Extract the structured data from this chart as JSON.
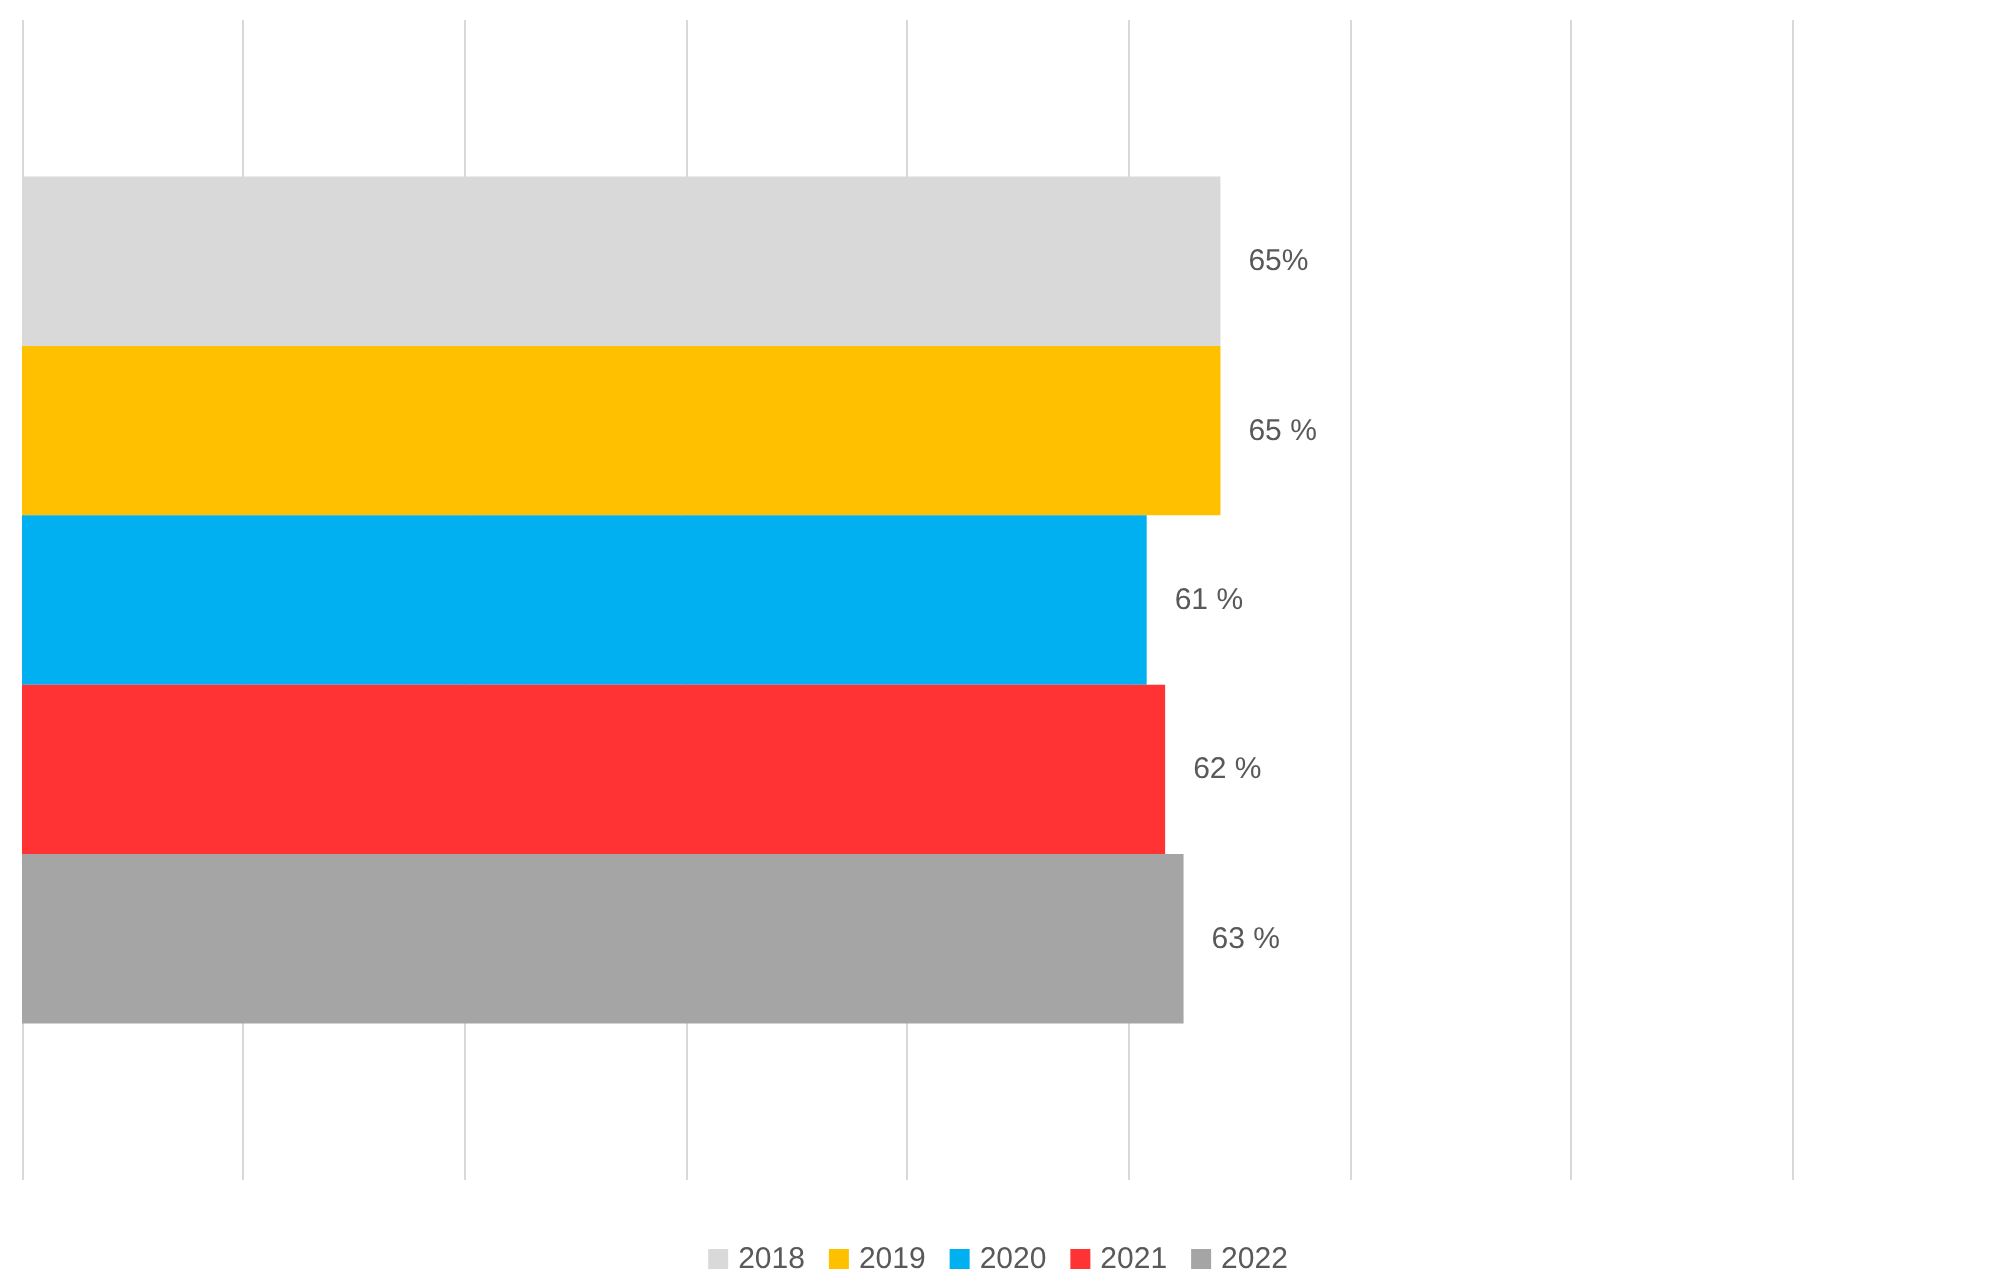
{
  "chart_data": {
    "type": "bar",
    "orientation": "horizontal",
    "categories": [
      null
    ],
    "series": [
      {
        "name": "2018",
        "color": "#d9d9d9",
        "values": [
          65
        ],
        "value_labels": [
          "65%"
        ]
      },
      {
        "name": "2019",
        "color": "#ffc000",
        "values": [
          65
        ],
        "value_labels": [
          "65 %"
        ]
      },
      {
        "name": "2020",
        "color": "#00b0f0",
        "values": [
          61
        ],
        "value_labels": [
          "61 %"
        ]
      },
      {
        "name": "2021",
        "color": "#ff3333",
        "values": [
          62
        ],
        "value_labels": [
          "62 %"
        ]
      },
      {
        "name": "2022",
        "color": "#a5a5a5",
        "values": [
          63
        ],
        "value_labels": [
          "63 %"
        ]
      }
    ],
    "xlim": [
      0,
      96
    ],
    "xticks": [
      {
        "value": 0,
        "label": null
      },
      {
        "value": 12,
        "label": null
      },
      {
        "value": 24,
        "label": null
      },
      {
        "value": 36,
        "label": null
      },
      {
        "value": 48,
        "label": null
      },
      {
        "value": 60,
        "label": null
      },
      {
        "value": 72,
        "label": null
      },
      {
        "value": 84,
        "label": null
      },
      {
        "value": 96,
        "label": null
      }
    ],
    "grid": "x",
    "legend": "bottom"
  }
}
